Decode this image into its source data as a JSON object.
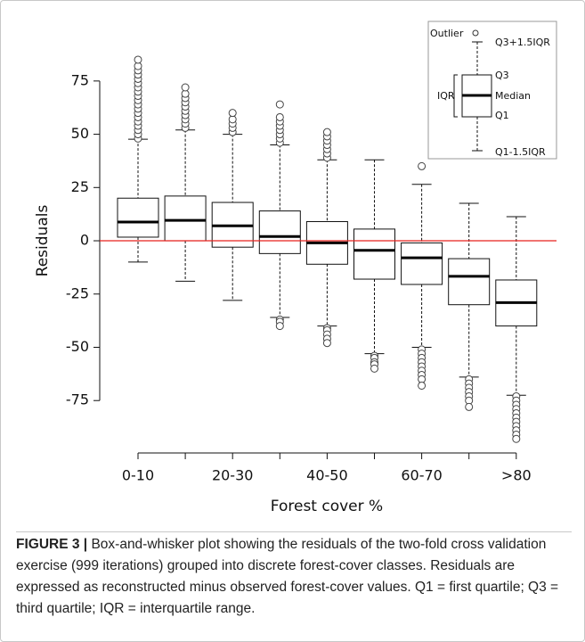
{
  "chart_data": {
    "type": "box",
    "x_label": "Forest cover %",
    "y_label": "Residuals",
    "categories": [
      "0-10",
      null,
      "20-30",
      null,
      "40-50",
      null,
      "60-70",
      null,
      ">80"
    ],
    "boxes": [
      {
        "whislo": -10,
        "q1": 1.7,
        "med": 8.8,
        "q3": 20,
        "whishi": 47.7,
        "fliers": [
          48,
          50,
          52,
          54,
          56,
          58,
          60,
          62,
          64,
          66,
          68,
          70,
          72,
          74,
          76,
          78,
          80,
          82,
          85
        ]
      },
      {
        "whislo": -19,
        "q1": 0,
        "med": 9.6,
        "q3": 21,
        "whishi": 52,
        "fliers": [
          53,
          55,
          57,
          59,
          61,
          63,
          65,
          67,
          69,
          72
        ]
      },
      {
        "whislo": -28,
        "q1": -3,
        "med": 7,
        "q3": 18,
        "whishi": 50,
        "fliers": [
          51,
          53,
          55,
          57,
          60
        ]
      },
      {
        "whislo": -36,
        "q1": -6,
        "med": 2,
        "q3": 14,
        "whishi": 45,
        "fliers": [
          46,
          48,
          50,
          52,
          54,
          56,
          58,
          64,
          -37,
          -38,
          -40
        ]
      },
      {
        "whislo": -40,
        "q1": -11,
        "med": -1,
        "q3": 9,
        "whishi": 38,
        "fliers": [
          39,
          41,
          43,
          45,
          47,
          49,
          51,
          -41,
          -42,
          -44,
          -46,
          -48
        ]
      },
      {
        "whislo": -53,
        "q1": -18,
        "med": -4.5,
        "q3": 5.5,
        "whishi": 38,
        "fliers": [
          -54,
          -55,
          -57,
          -58,
          -60
        ]
      },
      {
        "whislo": -50,
        "q1": -20.5,
        "med": -8,
        "q3": -1,
        "whishi": 26.5,
        "fliers": [
          35,
          -51,
          -53,
          -55,
          -57,
          -59,
          -61,
          -63,
          -65,
          -68
        ]
      },
      {
        "whislo": -64,
        "q1": -30,
        "med": -16.7,
        "q3": -8.4,
        "whishi": 17.6,
        "fliers": [
          -65,
          -67,
          -69,
          -71,
          -73,
          -75,
          -78
        ]
      },
      {
        "whislo": -72.5,
        "q1": -40,
        "med": -29,
        "q3": -18.4,
        "whishi": 11.3,
        "fliers": [
          -73,
          -75,
          -77,
          -79,
          -81,
          -83,
          -85,
          -87,
          -89,
          -91,
          -93
        ]
      }
    ],
    "ylim": [
      -95,
      90
    ],
    "yticks": [
      -75,
      -50,
      -25,
      0,
      25,
      50,
      75
    ],
    "hline": 0,
    "hline_color": "#e8201c",
    "legend_key": {
      "outlier": "Outlier",
      "upper": "Q3+1.5IQR",
      "q3": "Q3",
      "median": "Median",
      "q1": "Q1",
      "lower": "Q1-1.5IQR",
      "iqr": "IQR"
    }
  },
  "caption": {
    "label": "FIGURE 3 |",
    "text": " Box-and-whisker plot showing the residuals of the two-fold cross validation exercise (999 iterations) grouped into discrete forest-cover classes. Residuals are expressed as reconstructed minus observed forest-cover values. Q1 = first quartile; Q3 = third quartile; IQR = interquartile range."
  }
}
